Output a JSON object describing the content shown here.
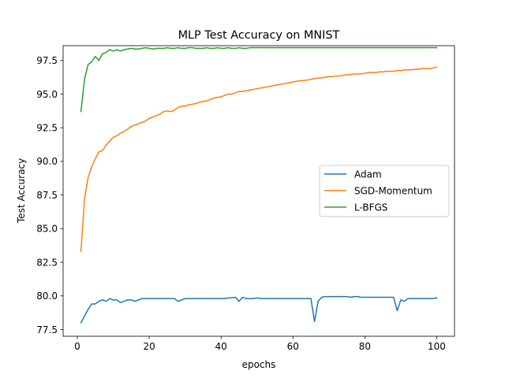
{
  "chart_data": {
    "type": "line",
    "title": "MLP Test Accuracy on MNIST",
    "xlabel": "epochs",
    "ylabel": "Test Accuracy",
    "xlim": [
      -3.95,
      104.95
    ],
    "ylim": [
      77.0,
      98.6
    ],
    "xticks": [
      0,
      20,
      40,
      60,
      80,
      100
    ],
    "yticks": [
      77.5,
      80.0,
      82.5,
      85.0,
      87.5,
      90.0,
      92.5,
      95.0,
      97.5
    ],
    "ytick_labels": [
      "77.5",
      "80.0",
      "82.5",
      "85.0",
      "87.5",
      "90.0",
      "92.5",
      "95.0",
      "97.5"
    ],
    "grid": false,
    "legend": "center-right",
    "x": [
      1,
      2,
      3,
      4,
      5,
      6,
      7,
      8,
      9,
      10,
      11,
      12,
      13,
      14,
      15,
      16,
      17,
      18,
      19,
      20,
      21,
      22,
      23,
      24,
      25,
      26,
      27,
      28,
      29,
      30,
      31,
      32,
      33,
      34,
      35,
      36,
      37,
      38,
      39,
      40,
      41,
      42,
      43,
      44,
      45,
      46,
      47,
      48,
      49,
      50,
      51,
      52,
      53,
      54,
      55,
      56,
      57,
      58,
      59,
      60,
      61,
      62,
      63,
      64,
      65,
      66,
      67,
      68,
      69,
      70,
      71,
      72,
      73,
      74,
      75,
      76,
      77,
      78,
      79,
      80,
      81,
      82,
      83,
      84,
      85,
      86,
      87,
      88,
      89,
      90,
      91,
      92,
      93,
      94,
      95,
      96,
      97,
      98,
      99,
      100
    ],
    "series": [
      {
        "name": "Adam",
        "color": "#1f77b4",
        "values": [
          78.0,
          78.5,
          79.0,
          79.4,
          79.4,
          79.6,
          79.7,
          79.6,
          79.8,
          79.7,
          79.7,
          79.5,
          79.6,
          79.7,
          79.7,
          79.6,
          79.7,
          79.8,
          79.8,
          79.8,
          79.8,
          79.8,
          79.8,
          79.8,
          79.8,
          79.8,
          79.8,
          79.6,
          79.7,
          79.8,
          79.8,
          79.8,
          79.8,
          79.8,
          79.8,
          79.8,
          79.8,
          79.8,
          79.8,
          79.8,
          79.8,
          79.85,
          79.85,
          79.9,
          79.6,
          79.9,
          79.8,
          79.8,
          79.8,
          79.85,
          79.8,
          79.8,
          79.8,
          79.8,
          79.8,
          79.8,
          79.8,
          79.8,
          79.8,
          79.8,
          79.8,
          79.8,
          79.8,
          79.8,
          79.8,
          78.1,
          79.6,
          79.9,
          79.95,
          79.95,
          79.95,
          79.95,
          79.95,
          79.95,
          79.95,
          79.9,
          79.95,
          79.95,
          79.9,
          79.9,
          79.9,
          79.9,
          79.9,
          79.9,
          79.9,
          79.9,
          79.9,
          79.9,
          78.9,
          79.7,
          79.6,
          79.8,
          79.8,
          79.8,
          79.8,
          79.8,
          79.8,
          79.8,
          79.8,
          79.85
        ]
      },
      {
        "name": "SGD-Momentum",
        "color": "#ff7f0e",
        "values": [
          83.3,
          87.2,
          88.8,
          89.6,
          90.2,
          90.7,
          90.8,
          91.2,
          91.5,
          91.8,
          91.9,
          92.1,
          92.2,
          92.4,
          92.6,
          92.7,
          92.8,
          92.9,
          93.0,
          93.2,
          93.3,
          93.4,
          93.5,
          93.7,
          93.75,
          93.7,
          93.8,
          94.0,
          94.1,
          94.1,
          94.2,
          94.25,
          94.3,
          94.4,
          94.45,
          94.5,
          94.6,
          94.7,
          94.75,
          94.8,
          94.9,
          95.0,
          95.0,
          95.1,
          95.2,
          95.2,
          95.25,
          95.3,
          95.35,
          95.4,
          95.45,
          95.5,
          95.55,
          95.6,
          95.65,
          95.7,
          95.75,
          95.8,
          95.85,
          95.9,
          95.95,
          96.0,
          96.0,
          96.05,
          96.1,
          96.15,
          96.2,
          96.2,
          96.25,
          96.3,
          96.3,
          96.35,
          96.35,
          96.4,
          96.45,
          96.45,
          96.5,
          96.5,
          96.5,
          96.55,
          96.6,
          96.6,
          96.6,
          96.65,
          96.65,
          96.7,
          96.7,
          96.7,
          96.75,
          96.75,
          96.8,
          96.8,
          96.8,
          96.85,
          96.85,
          96.9,
          96.9,
          96.9,
          96.95,
          97.0
        ]
      },
      {
        "name": "L-BFGS",
        "color": "#2ca02c",
        "values": [
          93.7,
          96.1,
          97.2,
          97.4,
          97.8,
          97.5,
          98.0,
          98.1,
          98.3,
          98.2,
          98.3,
          98.2,
          98.3,
          98.35,
          98.4,
          98.35,
          98.35,
          98.4,
          98.45,
          98.4,
          98.35,
          98.4,
          98.4,
          98.4,
          98.45,
          98.4,
          98.4,
          98.45,
          98.4,
          98.4,
          98.45,
          98.45,
          98.4,
          98.4,
          98.4,
          98.45,
          98.4,
          98.4,
          98.45,
          98.4,
          98.4,
          98.45,
          98.4,
          98.4,
          98.45,
          98.4,
          98.4,
          98.45,
          98.45,
          98.45,
          98.45,
          98.45,
          98.45,
          98.45,
          98.45,
          98.45,
          98.45,
          98.45,
          98.45,
          98.45,
          98.45,
          98.45,
          98.45,
          98.45,
          98.45,
          98.45,
          98.45,
          98.45,
          98.45,
          98.45,
          98.45,
          98.45,
          98.45,
          98.45,
          98.45,
          98.45,
          98.45,
          98.45,
          98.45,
          98.45,
          98.45,
          98.45,
          98.45,
          98.45,
          98.45,
          98.45,
          98.45,
          98.45,
          98.45,
          98.45,
          98.45,
          98.45,
          98.45,
          98.45,
          98.45,
          98.45,
          98.45,
          98.45,
          98.45,
          98.45
        ]
      }
    ]
  }
}
